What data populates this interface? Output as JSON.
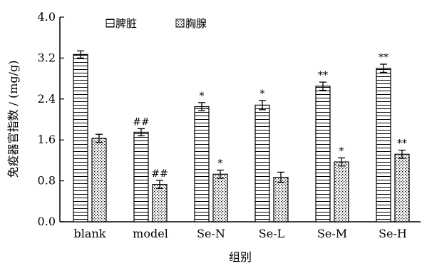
{
  "chart_data": {
    "type": "bar",
    "title": "",
    "xlabel": "组别",
    "ylabel": "免疫器官指数 / (mg/g)",
    "ylim": [
      0,
      4.0
    ],
    "yticks": [
      "0.0",
      "0.8",
      "1.6",
      "2.4",
      "3.2",
      "4.0"
    ],
    "categories": [
      "blank",
      "model",
      "Se-N",
      "Se-L",
      "Se-M",
      "Se-H"
    ],
    "series": [
      {
        "name": "脾脏",
        "pattern": "horizontal-lines",
        "values": [
          3.27,
          1.75,
          2.25,
          2.28,
          2.65,
          3.0
        ],
        "errors": [
          0.07,
          0.07,
          0.08,
          0.09,
          0.08,
          0.08
        ],
        "annotations": [
          "",
          "##",
          "*",
          "*",
          "**",
          "**"
        ]
      },
      {
        "name": "胸腺",
        "pattern": "dots",
        "values": [
          1.63,
          0.73,
          0.93,
          0.87,
          1.17,
          1.32
        ],
        "errors": [
          0.08,
          0.08,
          0.08,
          0.1,
          0.08,
          0.08
        ],
        "annotations": [
          "",
          "##",
          "*",
          "",
          "*",
          "**"
        ]
      }
    ],
    "legend_position": "top-left",
    "grid": false
  }
}
